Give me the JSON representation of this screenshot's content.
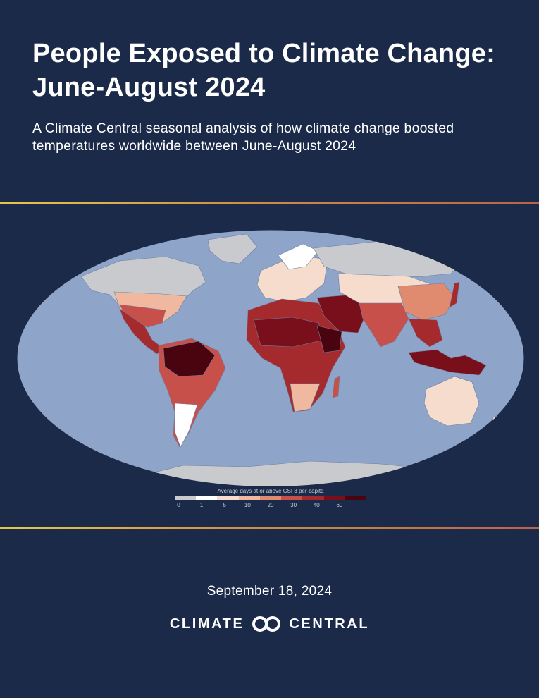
{
  "title": "People Exposed to Climate Change: June-August 2024",
  "subtitle": "A Climate Central seasonal analysis of how climate change boosted temperatures worldwide between June-August 2024",
  "date": "September 18, 2024",
  "logo": {
    "left_word": "CLIMATE",
    "right_word": "CENTRAL",
    "icon": "interlocking-circles-icon"
  },
  "colors": {
    "background": "#1b2a48",
    "ocean": "#8ea4c8",
    "accent_rule": "#e6c84a"
  },
  "legend": {
    "title": "Average days at or above CSI 3 per-capita",
    "ticks": [
      "0",
      "1",
      "5",
      "10",
      "20",
      "30",
      "40",
      "60"
    ],
    "colors": [
      "#c8cacd",
      "#ffffff",
      "#f6dccd",
      "#f0b89f",
      "#e08a70",
      "#c8504a",
      "#a52a2e",
      "#7a0f1c",
      "#4a0410"
    ]
  }
}
